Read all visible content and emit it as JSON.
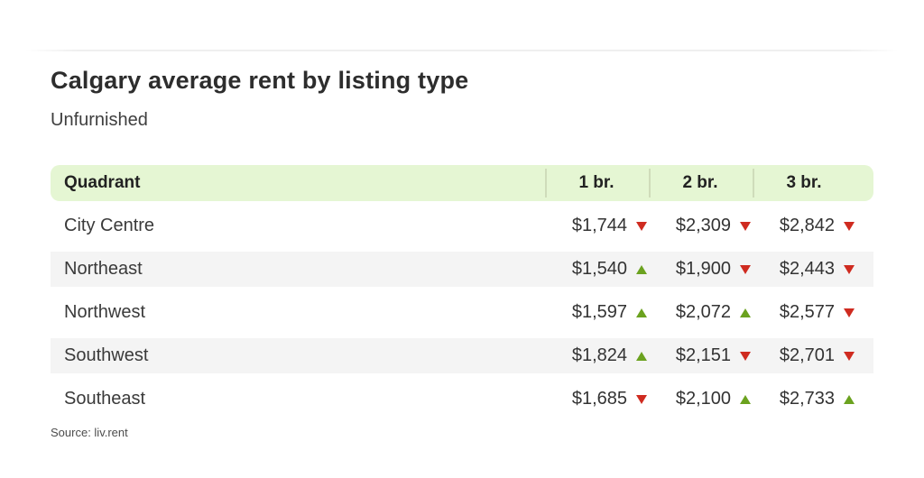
{
  "header": {
    "title": "Calgary average rent by listing type",
    "subtitle": "Unfurnished"
  },
  "footer": {
    "source": "Source: liv.rent"
  },
  "colors": {
    "header_bg": "#e5f6d3",
    "header_separator": "#cfdcba",
    "row_alt_bg": "#f4f4f4",
    "trend_up": "#6ba21f",
    "trend_down": "#cf2b20",
    "title_text": "#2d2d2d"
  },
  "chart_data": {
    "type": "table",
    "title": "Calgary average rent by listing type",
    "subtitle": "Unfurnished",
    "source": "Source: liv.rent",
    "columns": [
      "Quadrant",
      "1 br.",
      "2 br.",
      "3 br."
    ],
    "rows": [
      {
        "quadrant": "City Centre",
        "cells": [
          {
            "value": 1744,
            "display": "$1,744",
            "trend": "down"
          },
          {
            "value": 2309,
            "display": "$2,309",
            "trend": "down"
          },
          {
            "value": 2842,
            "display": "$2,842",
            "trend": "down"
          }
        ]
      },
      {
        "quadrant": "Northeast",
        "cells": [
          {
            "value": 1540,
            "display": "$1,540",
            "trend": "up"
          },
          {
            "value": 1900,
            "display": "$1,900",
            "trend": "down"
          },
          {
            "value": 2443,
            "display": "$2,443",
            "trend": "down"
          }
        ]
      },
      {
        "quadrant": "Northwest",
        "cells": [
          {
            "value": 1597,
            "display": "$1,597",
            "trend": "up"
          },
          {
            "value": 2072,
            "display": "$2,072",
            "trend": "up"
          },
          {
            "value": 2577,
            "display": "$2,577",
            "trend": "down"
          }
        ]
      },
      {
        "quadrant": "Southwest",
        "cells": [
          {
            "value": 1824,
            "display": "$1,824",
            "trend": "up"
          },
          {
            "value": 2151,
            "display": "$2,151",
            "trend": "down"
          },
          {
            "value": 2701,
            "display": "$2,701",
            "trend": "down"
          }
        ]
      },
      {
        "quadrant": "Southeast",
        "cells": [
          {
            "value": 1685,
            "display": "$1,685",
            "trend": "down"
          },
          {
            "value": 2100,
            "display": "$2,100",
            "trend": "up"
          },
          {
            "value": 2733,
            "display": "$2,733",
            "trend": "up"
          }
        ]
      }
    ]
  }
}
